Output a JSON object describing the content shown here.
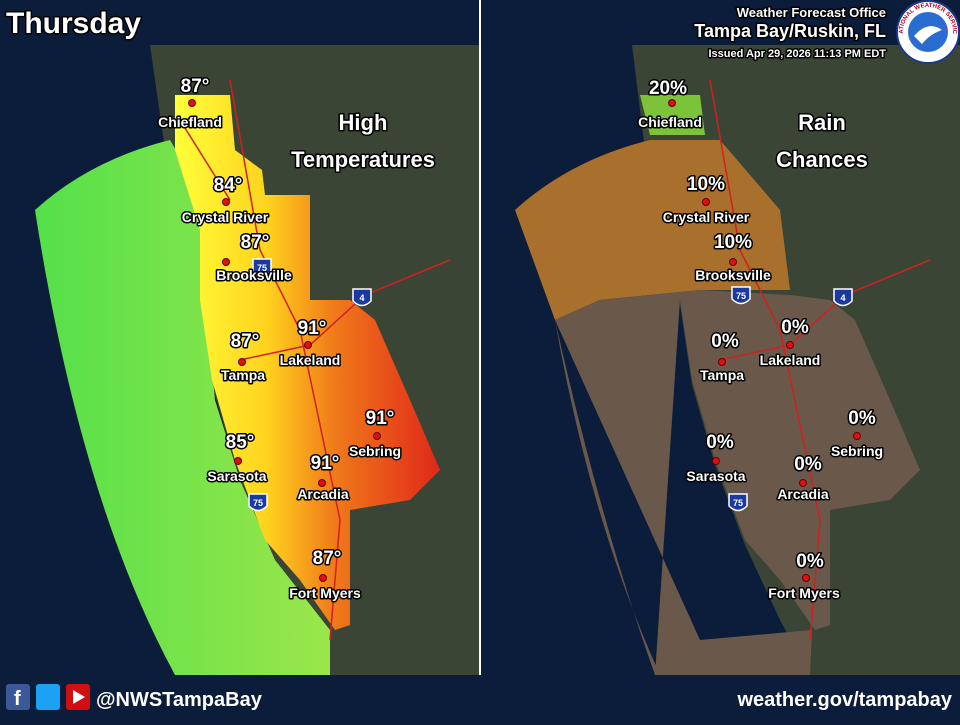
{
  "header": {
    "title": "Thursday",
    "office": "Weather Forecast Office",
    "location": "Tampa Bay/Ruskin, FL",
    "issued": "Issued Apr 29, 2026 11:13 PM EDT",
    "logo_text": "NATIONAL WEATHER SERVICE"
  },
  "panels": [
    {
      "title_lines": [
        "High",
        "Temperatures"
      ],
      "shields": [
        "75",
        "75",
        "4"
      ],
      "cities": [
        {
          "name": "Chiefland",
          "value": "87°"
        },
        {
          "name": "Crystal River",
          "value": "84°"
        },
        {
          "name": "Brooksville",
          "value": "87°"
        },
        {
          "name": "Tampa",
          "value": "87°"
        },
        {
          "name": "Lakeland",
          "value": "91°"
        },
        {
          "name": "Sebring",
          "value": "91°"
        },
        {
          "name": "Sarasota",
          "value": "85°"
        },
        {
          "name": "Arcadia",
          "value": "91°"
        },
        {
          "name": "Fort Myers",
          "value": "87°"
        }
      ]
    },
    {
      "title_lines": [
        "Rain",
        "Chances"
      ],
      "shields": [
        "75",
        "75",
        "4"
      ],
      "cities": [
        {
          "name": "Chiefland",
          "value": "20%"
        },
        {
          "name": "Crystal River",
          "value": "10%"
        },
        {
          "name": "Brooksville",
          "value": "10%"
        },
        {
          "name": "Tampa",
          "value": "0%"
        },
        {
          "name": "Lakeland",
          "value": "0%"
        },
        {
          "name": "Sebring",
          "value": "0%"
        },
        {
          "name": "Sarasota",
          "value": "0%"
        },
        {
          "name": "Arcadia",
          "value": "0%"
        },
        {
          "name": "Fort Myers",
          "value": "0%"
        }
      ]
    }
  ],
  "footer": {
    "social": "@NWSTampaBay",
    "website": "weather.gov/tampabay"
  }
}
